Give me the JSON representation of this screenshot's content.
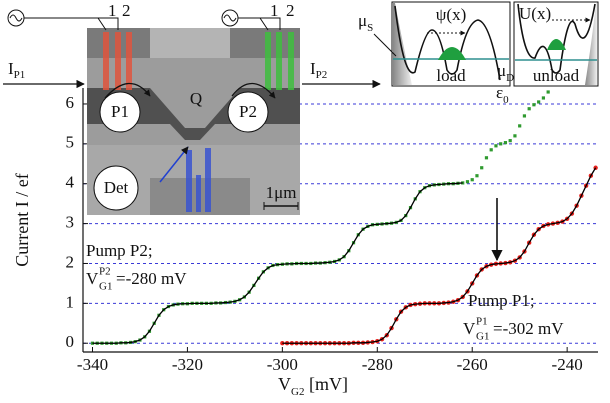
{
  "chart_data": {
    "type": "scatter",
    "y_label": "Current I / ef",
    "x_label": {
      "main": "V",
      "sub": "G2",
      "rest": " [mV]"
    },
    "xlim": [
      -342,
      -233.5
    ],
    "ylim": [
      -0.22,
      6.4
    ],
    "xticks": [
      -340,
      -320,
      -300,
      -280,
      -260,
      -240
    ],
    "yticks": [
      0,
      1,
      2,
      3,
      4,
      5,
      6
    ],
    "grid": true,
    "grid_color": "#3a3ad8",
    "series": [
      {
        "color": "#2f9a2f",
        "marker": "square",
        "fit": true,
        "fit_color": "#000000",
        "x": [
          -340,
          -339,
          -338,
          -337,
          -336,
          -335,
          -334,
          -333,
          -332,
          -331,
          -330,
          -329,
          -328,
          -327,
          -326,
          -325,
          -324,
          -323,
          -322,
          -321,
          -320,
          -319,
          -318,
          -317,
          -316,
          -315,
          -314,
          -313,
          -312,
          -311,
          -310,
          -309,
          -308,
          -307,
          -306,
          -305,
          -304,
          -303,
          -302,
          -301,
          -300,
          -299,
          -298,
          -297,
          -296,
          -295,
          -294,
          -293,
          -292,
          -291,
          -290,
          -289,
          -288,
          -287,
          -286,
          -285,
          -284,
          -283,
          -282,
          -281,
          -280,
          -279,
          -278,
          -277,
          -276,
          -275,
          -274,
          -273,
          -272,
          -271,
          -270,
          -269,
          -268,
          -267,
          -266,
          -265,
          -264,
          -263,
          -262
        ],
        "values": [
          0,
          0,
          0,
          0,
          0,
          0,
          0.01,
          0.01,
          0.02,
          0.04,
          0.08,
          0.16,
          0.3,
          0.5,
          0.7,
          0.84,
          0.92,
          0.96,
          0.98,
          0.99,
          0.99,
          1,
          1,
          1,
          1,
          1,
          1.01,
          1.01,
          1.02,
          1.03,
          1.05,
          1.09,
          1.16,
          1.28,
          1.45,
          1.63,
          1.79,
          1.89,
          1.95,
          1.97,
          1.98,
          1.99,
          1.99,
          2,
          2,
          2,
          2,
          2.01,
          2.01,
          2.02,
          2.03,
          2.05,
          2.09,
          2.17,
          2.32,
          2.52,
          2.72,
          2.86,
          2.93,
          2.97,
          2.98,
          2.99,
          3,
          3.01,
          3.03,
          3.08,
          3.2,
          3.4,
          3.62,
          3.8,
          3.9,
          3.95,
          3.97,
          3.98,
          3.99,
          4,
          4,
          4.01,
          4.02
        ]
      },
      {
        "color": "#2f9a2f",
        "marker": "square",
        "fit": false,
        "x": [
          -261,
          -260,
          -259,
          -258,
          -257,
          -256,
          -255,
          -254,
          -253,
          -252,
          -251,
          -250,
          -249,
          -248,
          -247,
          -246,
          -245,
          -244
        ],
        "values": [
          4.05,
          4.1,
          4.2,
          4.4,
          4.65,
          4.85,
          4.95,
          5,
          5.03,
          5.08,
          5.2,
          5.45,
          5.7,
          5.88,
          5.98,
          6.05,
          6.15,
          6.3
        ]
      },
      {
        "color": "#e8201c",
        "marker": "circle",
        "fit": true,
        "fit_color": "#000000",
        "x": [
          -300,
          -299,
          -298,
          -297,
          -296,
          -295,
          -294,
          -293,
          -292,
          -291,
          -290,
          -289,
          -288,
          -287,
          -286,
          -285,
          -284,
          -283,
          -282,
          -281,
          -280,
          -279,
          -278,
          -277,
          -276,
          -275,
          -274,
          -273,
          -272,
          -271,
          -270,
          -269,
          -268,
          -267,
          -266,
          -265,
          -264,
          -263,
          -262,
          -261,
          -260,
          -259,
          -258,
          -257,
          -256,
          -255,
          -254,
          -253,
          -252,
          -251,
          -250,
          -249,
          -248,
          -247,
          -246,
          -245,
          -244,
          -243,
          -242,
          -241,
          -240,
          -239,
          -238,
          -237,
          -236,
          -235,
          -234
        ],
        "values": [
          0,
          0,
          0,
          0,
          0,
          0,
          0,
          0,
          0,
          0,
          0,
          0,
          0,
          0,
          0,
          0.01,
          0.01,
          0.01,
          0.02,
          0.03,
          0.05,
          0.1,
          0.2,
          0.38,
          0.6,
          0.79,
          0.9,
          0.96,
          0.98,
          0.99,
          1,
          1,
          1,
          1,
          1.01,
          1.02,
          1.04,
          1.08,
          1.16,
          1.3,
          1.5,
          1.7,
          1.85,
          1.93,
          1.97,
          1.99,
          2,
          2.01,
          2.03,
          2.07,
          2.15,
          2.3,
          2.52,
          2.72,
          2.86,
          2.94,
          2.98,
          3,
          3.02,
          3.05,
          3.12,
          3.25,
          3.45,
          3.7,
          3.95,
          4.2,
          4.4
        ]
      }
    ],
    "annotations": {
      "p2_title": "Pump P2;",
      "p2_voltage": {
        "main": "V",
        "sup": "P2",
        "sub": "G1",
        "rest": "=-280 mV"
      },
      "p1_title": "Pump P1;",
      "p1_voltage": {
        "main": "V",
        "sup": "P1",
        "sub": "G1",
        "rest": "=-302 mV"
      }
    }
  },
  "sem_inset": {
    "gate_labels_left": [
      "1",
      "2"
    ],
    "gate_labels_right": [
      "1",
      "2"
    ],
    "current_in": {
      "main": "I",
      "sub": "P1"
    },
    "current_out": {
      "main": "I",
      "sub": "P2"
    },
    "dot": "Q",
    "pump_left": "P1",
    "pump_right": "P2",
    "detector": "Det",
    "scale_bar": "1μm"
  },
  "schematic": {
    "mu_s": {
      "main": "μ",
      "sub": "S"
    },
    "psi": "ψ(x)",
    "load": "load",
    "potential": "U(x)",
    "mu_d": {
      "main": "μ",
      "sub": "D"
    },
    "epsilon": {
      "main": "ε",
      "sub": "0"
    },
    "unload": "unload"
  }
}
